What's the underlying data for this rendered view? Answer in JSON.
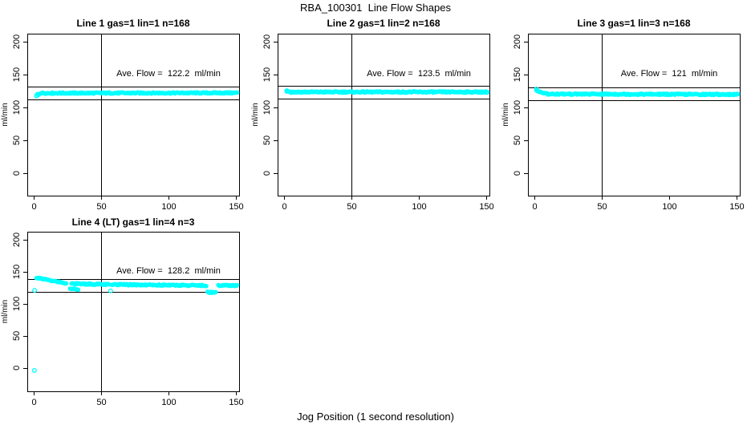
{
  "main": {
    "title": "RBA_100301  Line Flow Shapes",
    "xlabel": "Jog Position (1 second resolution)"
  },
  "chart_data": [
    {
      "type": "scatter",
      "title": "Line 1 gas=1 lin=1 n=168",
      "n": 168,
      "ave_flow": 122.2,
      "annotation": "Ave. Flow =  122.2  ml/min",
      "annotation_pos": [
        100,
        150
      ],
      "ylabel": "ml/min",
      "xticks": [
        0,
        50,
        100,
        150
      ],
      "yticks": [
        0,
        50,
        100,
        150,
        200
      ],
      "xlim": [
        -4.8,
        152.4
      ],
      "ylim": [
        -34.1,
        212.2
      ],
      "vline_x": 50,
      "hlines": [
        132.0,
        112.4
      ],
      "point_color": "#00ffff",
      "bands": [
        {
          "x0": 2,
          "x1": 6,
          "y0": 119.0,
          "y1": 121.8
        },
        {
          "x0": 6,
          "x1": 151,
          "y0": 121.8,
          "y1": 122.2
        }
      ],
      "outliers": [
        [
          2,
          117.5
        ]
      ]
    },
    {
      "type": "scatter",
      "title": "Line 2 gas=1 lin=2 n=168",
      "n": 168,
      "ave_flow": 123.5,
      "annotation": "Ave. Flow =  123.5  ml/min",
      "annotation_pos": [
        100,
        150
      ],
      "ylabel": "ml/min",
      "xticks": [
        0,
        50,
        100,
        150
      ],
      "yticks": [
        0,
        50,
        100,
        150,
        200
      ],
      "xlim": [
        -4.8,
        152.4
      ],
      "ylim": [
        -34.1,
        212.2
      ],
      "vline_x": 50,
      "hlines": [
        133.4,
        113.6
      ],
      "point_color": "#00ffff",
      "bands": [
        {
          "x0": 2,
          "x1": 5,
          "y0": 124.8,
          "y1": 123.5
        },
        {
          "x0": 5,
          "x1": 151,
          "y0": 123.5,
          "y1": 123.5
        }
      ],
      "outliers": [
        [
          2,
          125.5
        ]
      ]
    },
    {
      "type": "scatter",
      "title": "Line 3 gas=1 lin=3 n=168",
      "n": 168,
      "ave_flow": 121,
      "annotation": "Ave. Flow =  121  ml/min",
      "annotation_pos": [
        100,
        150
      ],
      "ylabel": "ml/min",
      "xticks": [
        0,
        50,
        100,
        150
      ],
      "yticks": [
        0,
        50,
        100,
        150,
        200
      ],
      "xlim": [
        -4.8,
        152.4
      ],
      "ylim": [
        -34.1,
        212.2
      ],
      "vline_x": 50,
      "hlines": [
        130.5,
        111.0
      ],
      "point_color": "#00ffff",
      "bands": [
        {
          "x0": 1.5,
          "x1": 4,
          "y0": 127.0,
          "y1": 123.0
        },
        {
          "x0": 4,
          "x1": 10,
          "y0": 123.0,
          "y1": 120.5
        },
        {
          "x0": 10,
          "x1": 151,
          "y0": 120.5,
          "y1": 119.8
        }
      ],
      "outliers": [
        [
          1.5,
          128.0
        ]
      ]
    },
    {
      "type": "scatter",
      "title": "Line 4 (LT) gas=1 lin=4 n=3",
      "n": 3,
      "ave_flow": 128.2,
      "annotation": "Ave. Flow =  128.2  ml/min",
      "annotation_pos": [
        100,
        150
      ],
      "ylabel": "ml/min",
      "xticks": [
        0,
        50,
        100,
        150
      ],
      "yticks": [
        0,
        50,
        100,
        150,
        200
      ],
      "xlim": [
        -4.8,
        152.4
      ],
      "ylim": [
        -36.6,
        212.5
      ],
      "vline_x": 50,
      "hlines": [
        138.4,
        118.4
      ],
      "point_color": "#00ffff",
      "bands": [
        {
          "x0": 2,
          "x1": 6,
          "y0": 140.5,
          "y1": 139.0
        },
        {
          "x0": 6,
          "x1": 24,
          "y0": 139.0,
          "y1": 132.0
        },
        {
          "x0": 28,
          "x1": 56,
          "y0": 131.5,
          "y1": 130.0
        },
        {
          "x0": 58,
          "x1": 128,
          "y0": 130.0,
          "y1": 128.6
        },
        {
          "x0": 137,
          "x1": 151,
          "y0": 128.6,
          "y1": 128.4
        },
        {
          "x0": 27,
          "x1": 33,
          "y0": 123.5,
          "y1": 122.0
        },
        {
          "x0": 129,
          "x1": 135,
          "y0": 118.2,
          "y1": 117.6
        }
      ],
      "outliers": [
        [
          0.5,
          -4.0
        ],
        [
          0.6,
          121.0
        ],
        [
          57,
          120.3
        ]
      ]
    }
  ]
}
